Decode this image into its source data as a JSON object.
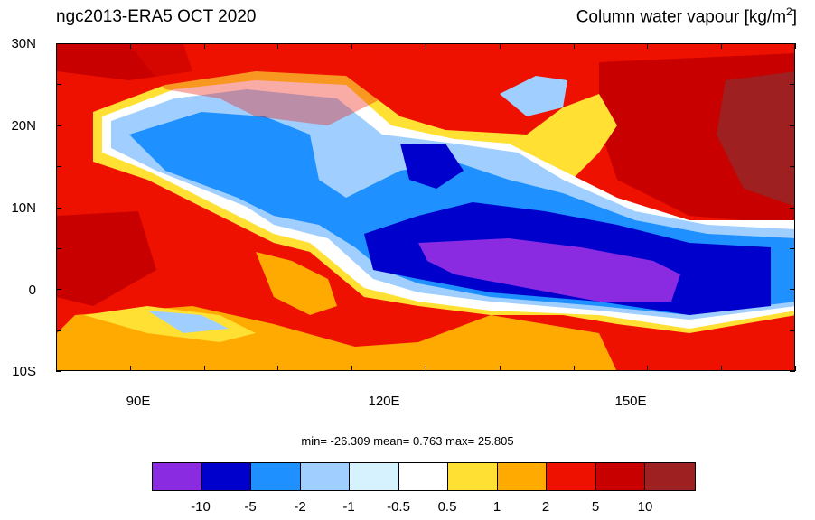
{
  "title_left": "ngc2013-ERA5  OCT 2020",
  "title_right": "Column water vapour [kg/m",
  "title_right_sup": "2",
  "title_right_end": "]",
  "y_labels": [
    "30N",
    "20N",
    "10N",
    "0",
    "10S"
  ],
  "x_labels": [
    "90E",
    "120E",
    "150E"
  ],
  "stats": "min= -26.309  mean=   0.763  max=  25.805",
  "colorbar": {
    "colors": [
      "#8a2be2",
      "#0000cd",
      "#1e90ff",
      "#a0cfff",
      "#d6f2ff",
      "#ffffff",
      "#ffe033",
      "#ffaa00",
      "#ee1100",
      "#c80000",
      "#9e2020"
    ],
    "labels": [
      "-10",
      "-5",
      "-2",
      "-1",
      "-0.5",
      "0.5",
      "1",
      "2",
      "5",
      "10"
    ]
  }
}
